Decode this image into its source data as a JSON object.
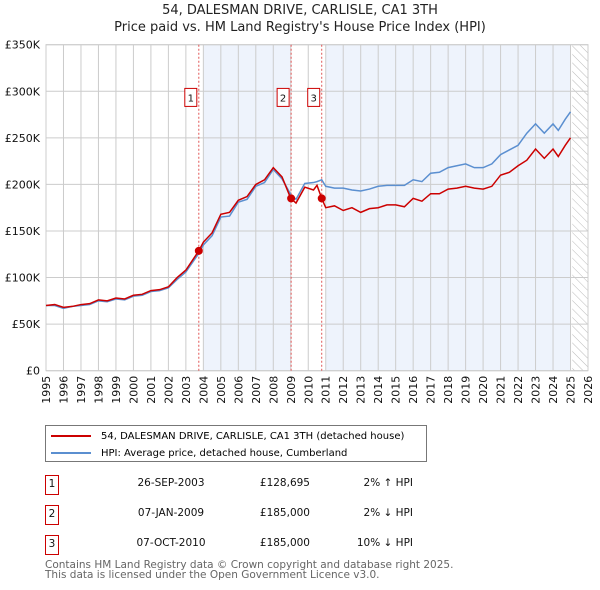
{
  "chart_data": {
    "type": "line",
    "title": "54, DALESMAN DRIVE, CARLISLE, CA1 3TH",
    "subtitle": "Price paid vs. HM Land Registry's House Price Index (HPI)",
    "xlim": [
      1995,
      2026
    ],
    "ylim": [
      0,
      350000
    ],
    "x_ticks": [
      "1995",
      "1996",
      "1997",
      "1998",
      "1999",
      "2000",
      "2001",
      "2002",
      "2003",
      "2004",
      "2005",
      "2006",
      "2007",
      "2008",
      "2009",
      "2010",
      "2011",
      "2012",
      "2013",
      "2014",
      "2015",
      "2016",
      "2017",
      "2018",
      "2019",
      "2020",
      "2021",
      "2022",
      "2023",
      "2024",
      "2025",
      "2026"
    ],
    "y_ticks": [
      {
        "v": 0,
        "label": "£0"
      },
      {
        "v": 50000,
        "label": "£50K"
      },
      {
        "v": 100000,
        "label": "£100K"
      },
      {
        "v": 150000,
        "label": "£150K"
      },
      {
        "v": 200000,
        "label": "£200K"
      },
      {
        "v": 250000,
        "label": "£250K"
      },
      {
        "v": 300000,
        "label": "£300K"
      },
      {
        "v": 350000,
        "label": "£350K"
      }
    ],
    "grid": true,
    "series": [
      {
        "name": "54, DALESMAN DRIVE, CARLISLE, CA1 3TH (detached house)",
        "color": "#cc0000",
        "x": [
          1995,
          1995.5,
          1996,
          1996.5,
          1997,
          1997.5,
          1998,
          1998.5,
          1999,
          1999.5,
          2000,
          2000.5,
          2001,
          2001.5,
          2002,
          2002.5,
          2003,
          2003.74,
          2004,
          2004.5,
          2005,
          2005.5,
          2006,
          2006.5,
          2007,
          2007.5,
          2008,
          2008.5,
          2009,
          2009.3,
          2009.8,
          2010.3,
          2010.5,
          2010.77,
          2011,
          2011.5,
          2012,
          2012.5,
          2013,
          2013.5,
          2014,
          2014.5,
          2015,
          2015.5,
          2016,
          2016.5,
          2017,
          2017.5,
          2018,
          2018.5,
          2019,
          2019.5,
          2020,
          2020.5,
          2021,
          2021.5,
          2022,
          2022.5,
          2023,
          2023.5,
          2024,
          2024.3,
          2024.7,
          2025
        ],
        "y": [
          70000,
          71000,
          68000,
          69000,
          71000,
          72000,
          76000,
          75000,
          78000,
          77000,
          81000,
          82000,
          86000,
          87000,
          90000,
          100000,
          108000,
          128695,
          138000,
          148000,
          168000,
          170000,
          183000,
          187000,
          200000,
          205000,
          218000,
          208000,
          185000,
          180000,
          197000,
          194000,
          199000,
          185000,
          175000,
          177000,
          172000,
          175000,
          170000,
          174000,
          175000,
          178000,
          178000,
          176000,
          185000,
          182000,
          190000,
          190000,
          195000,
          196000,
          198000,
          196000,
          195000,
          198000,
          210000,
          213000,
          220000,
          226000,
          238000,
          228000,
          238000,
          230000,
          242000,
          250000
        ]
      },
      {
        "name": "HPI: Average price, detached house, Cumberland",
        "color": "#5b8fd0",
        "x": [
          1995,
          1995.5,
          1996,
          1996.5,
          1997,
          1997.5,
          1998,
          1998.5,
          1999,
          1999.5,
          2000,
          2000.5,
          2001,
          2001.5,
          2002,
          2002.5,
          2003,
          2003.74,
          2004,
          2004.5,
          2005,
          2005.5,
          2006,
          2006.5,
          2007,
          2007.5,
          2008,
          2008.5,
          2009,
          2009.3,
          2009.8,
          2010.3,
          2010.5,
          2010.77,
          2011,
          2011.5,
          2012,
          2012.5,
          2013,
          2013.5,
          2014,
          2014.5,
          2015,
          2015.5,
          2016,
          2016.5,
          2017,
          2017.5,
          2018,
          2018.5,
          2019,
          2019.5,
          2020,
          2020.5,
          2021,
          2021.5,
          2022,
          2022.5,
          2023,
          2023.5,
          2024,
          2024.3,
          2024.7,
          2025
        ],
        "y": [
          70000,
          70000,
          67000,
          69000,
          70000,
          71000,
          75000,
          74000,
          77000,
          76000,
          80000,
          81000,
          85000,
          86000,
          89000,
          98000,
          106000,
          126000,
          135000,
          145000,
          165000,
          166000,
          181000,
          184000,
          198000,
          202000,
          216000,
          206000,
          189000,
          184000,
          201000,
          202000,
          203000,
          205000,
          198000,
          196000,
          196000,
          194000,
          193000,
          195000,
          198000,
          199000,
          199000,
          199000,
          205000,
          203000,
          212000,
          213000,
          218000,
          220000,
          222000,
          218000,
          218000,
          222000,
          232000,
          237000,
          242000,
          255000,
          265000,
          255000,
          265000,
          258000,
          270000,
          278000
        ]
      }
    ],
    "sales": [
      {
        "label": "1",
        "x": 2003.74,
        "y": 128695
      },
      {
        "label": "2",
        "x": 2009.02,
        "y": 185000
      },
      {
        "label": "3",
        "x": 2010.77,
        "y": 185000
      }
    ],
    "shaded_ranges": [
      [
        2004.0,
        2009.0
      ],
      [
        2011.0,
        2025.0
      ]
    ],
    "forecast_from": 2025.1,
    "legend_placement": "below"
  },
  "legend": {
    "price": "54, DALESMAN DRIVE, CARLISLE, CA1 3TH (detached house)",
    "hpi": "HPI: Average price, detached house, Cumberland"
  },
  "transactions": [
    {
      "num": "1",
      "date": "26-SEP-2003",
      "price": "£128,695",
      "hpi": "2% ↑ HPI"
    },
    {
      "num": "2",
      "date": "07-JAN-2009",
      "price": "£185,000",
      "hpi": "2% ↓ HPI"
    },
    {
      "num": "3",
      "date": "07-OCT-2010",
      "price": "£185,000",
      "hpi": "10% ↓ HPI"
    }
  ],
  "footer": {
    "line1": "Contains HM Land Registry data © Crown copyright and database right 2025.",
    "line2": "This data is licensed under the Open Government Licence v3.0."
  }
}
